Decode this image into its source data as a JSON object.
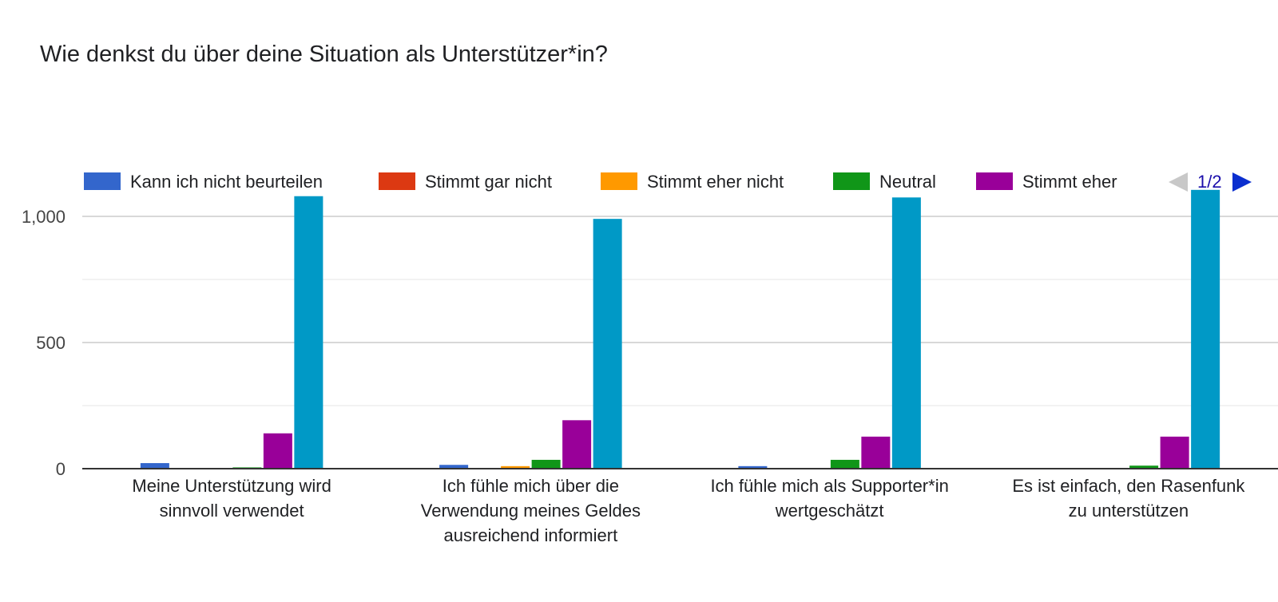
{
  "chart_data": {
    "type": "bar",
    "title": "Wie denkst du über deine Situation als Unterstützer*in?",
    "categories": [
      [
        "Meine Unterstützung wird",
        "sinnvoll verwendet"
      ],
      [
        "Ich fühle mich über die",
        "Verwendung meines Geldes",
        "ausreichend informiert"
      ],
      [
        "Ich fühle mich als Supporter*in",
        "wertgeschätzt"
      ],
      [
        "Es ist einfach, den Rasenfunk",
        "zu unterstützen"
      ]
    ],
    "series": [
      {
        "name": "Kann ich nicht beurteilen",
        "color": "#3366cc",
        "values": [
          22,
          15,
          10,
          0
        ]
      },
      {
        "name": "Stimmt gar nicht",
        "color": "#dc3912",
        "values": [
          0,
          0,
          0,
          0
        ]
      },
      {
        "name": "Stimmt eher nicht",
        "color": "#ff9900",
        "values": [
          2,
          10,
          0,
          0
        ]
      },
      {
        "name": "Neutral",
        "color": "#109618",
        "values": [
          5,
          35,
          35,
          12
        ]
      },
      {
        "name": "Stimmt eher",
        "color": "#990099",
        "values": [
          140,
          192,
          127,
          127
        ]
      },
      {
        "color": "#0099c6",
        "values": [
          1080,
          990,
          1075,
          1105
        ]
      }
    ],
    "yticks": [
      0,
      500,
      "1,000"
    ],
    "ylim": [
      0,
      1200
    ],
    "legend_position": "top",
    "legend_pager": "1/2",
    "grid": true
  }
}
